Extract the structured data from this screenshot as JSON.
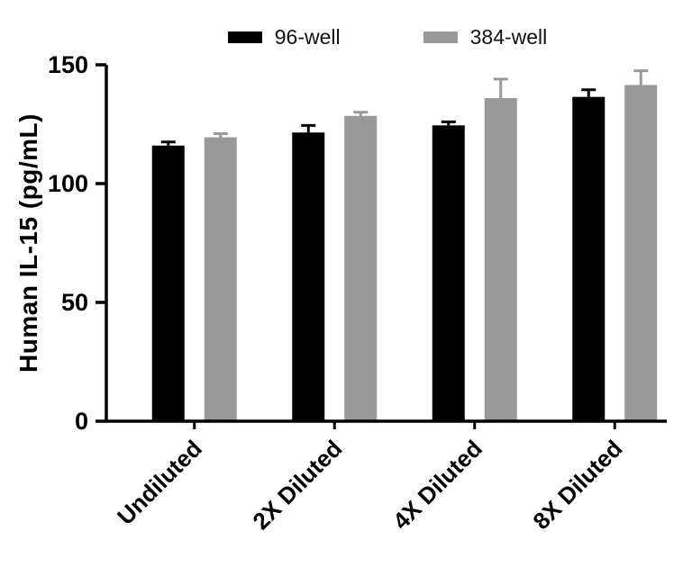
{
  "chart_data": {
    "type": "bar",
    "title": "",
    "ylabel": "Human IL-15 (pg/mL)",
    "xlabel": "",
    "ylim": [
      0,
      150
    ],
    "yticks": [
      0,
      50,
      100,
      150
    ],
    "grid": false,
    "legend_position": "top",
    "categories": [
      "Undiluted",
      "2X Diluted",
      "4X Diluted",
      "8X Diluted"
    ],
    "series": [
      {
        "name": "96-well",
        "color": "#000000",
        "values": [
          116,
          121.5,
          124.5,
          136.5
        ],
        "errors": [
          1.5,
          3,
          1.5,
          3
        ]
      },
      {
        "name": "384-well",
        "color": "#999999",
        "values": [
          119.5,
          128.5,
          136,
          141.5
        ],
        "errors": [
          1.5,
          1.5,
          8,
          6
        ]
      }
    ],
    "axis_color": "#000000",
    "text_color": "#000000"
  }
}
